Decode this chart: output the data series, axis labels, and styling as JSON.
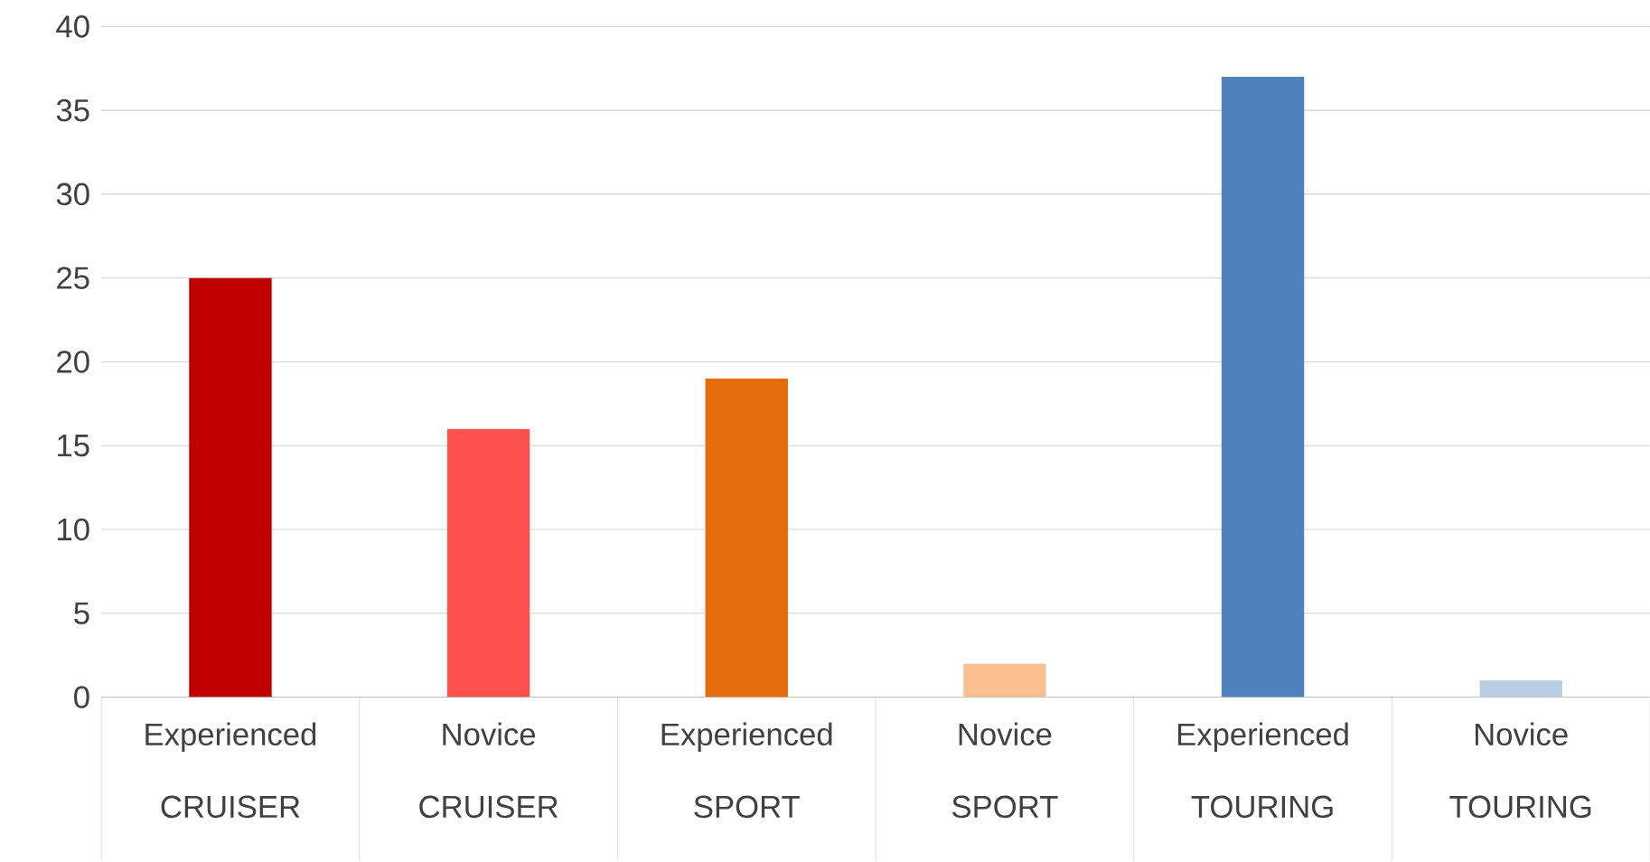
{
  "chart_data": {
    "type": "bar",
    "categories": [
      "Experienced CRUISER",
      "Novice CRUISER",
      "Experienced SPORT",
      "Novice SPORT",
      "Experienced TOURING",
      "Novice TOURING"
    ],
    "values": [
      25,
      16,
      19,
      2,
      37,
      1
    ],
    "colors": [
      "#c00000",
      "#ff5050",
      "#e46c0a",
      "#fac090",
      "#4f81bd",
      "#b9cde5"
    ],
    "ylim": [
      0,
      40
    ],
    "yticks": [
      0,
      5,
      10,
      15,
      20,
      25,
      30,
      35,
      40
    ],
    "grid": "y"
  }
}
